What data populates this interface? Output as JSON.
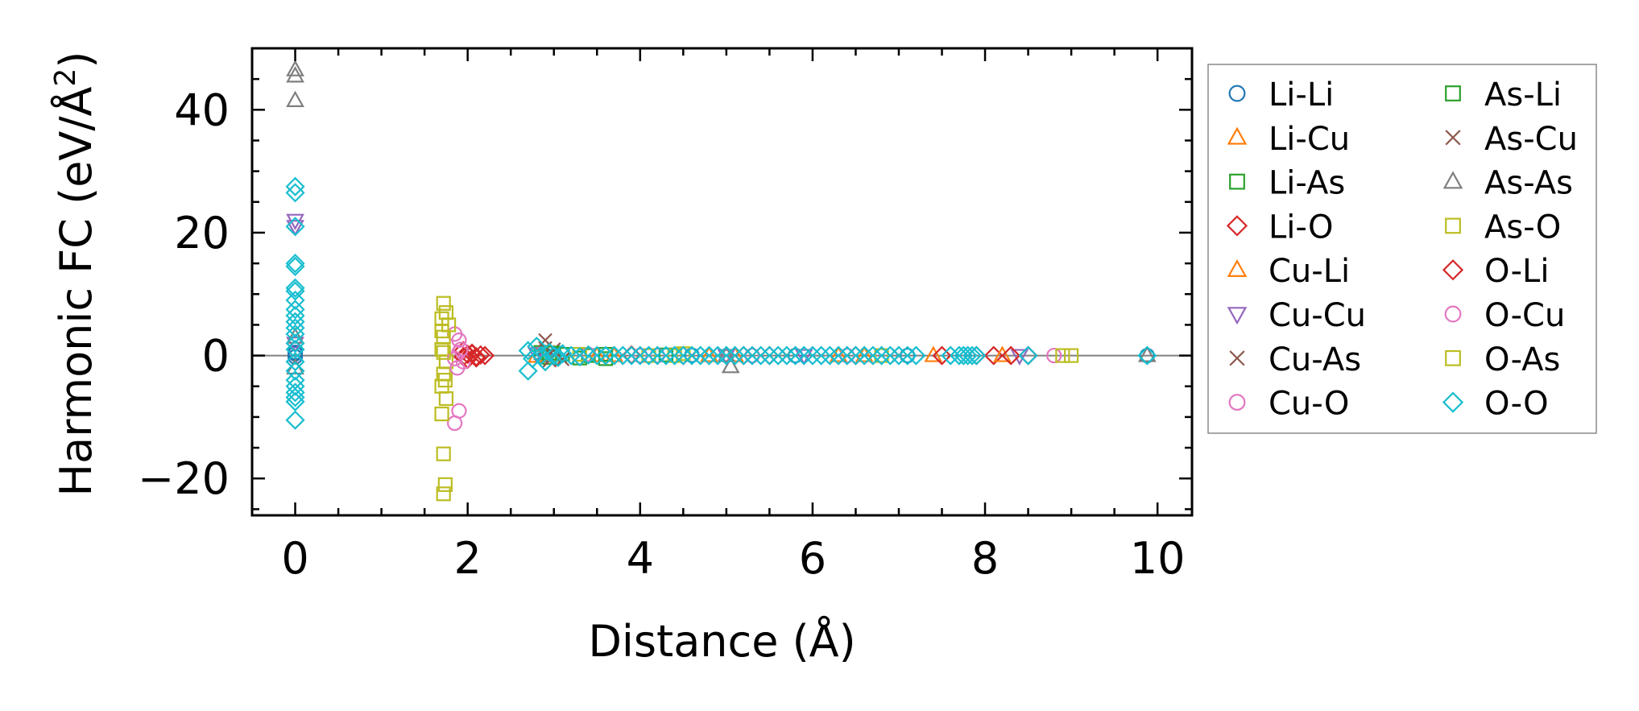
{
  "chart_data": {
    "type": "scatter",
    "title": "",
    "xlabel": "Distance (Å)",
    "ylabel_main": "Harmonic FC (eV/Å",
    "ylabel_sup": "2",
    "ylabel_close": ")",
    "xlim": [
      -0.5,
      10.4
    ],
    "ylim": [
      -26,
      50
    ],
    "xticks": [
      0,
      2,
      4,
      6,
      8,
      10
    ],
    "xtick_labels": [
      "0",
      "2",
      "4",
      "6",
      "8",
      "10"
    ],
    "yticks": [
      -20,
      0,
      20,
      40
    ],
    "ytick_labels": [
      "−20",
      "0",
      "20",
      "40"
    ],
    "grid": false,
    "legend_position": "outside-right",
    "zero_line": true,
    "series": [
      {
        "name": "Li-Li",
        "marker": "circle",
        "color": "#1f77b4",
        "points": [
          [
            0,
            0.5
          ],
          [
            0,
            0.3
          ],
          [
            0,
            -0.2
          ],
          [
            2.9,
            0.1
          ],
          [
            4.6,
            0.05
          ],
          [
            5.8,
            0
          ],
          [
            7.1,
            0
          ],
          [
            9.88,
            0
          ]
        ]
      },
      {
        "name": "Li-Cu",
        "marker": "triangle-up",
        "color": "#ff7f0e",
        "points": [
          [
            2.8,
            -0.1
          ],
          [
            2.9,
            0.2
          ],
          [
            3.5,
            0
          ],
          [
            4.8,
            0
          ],
          [
            6.3,
            0
          ],
          [
            7.4,
            0
          ]
        ]
      },
      {
        "name": "Li-As",
        "marker": "square",
        "color": "#2ca02c",
        "points": [
          [
            2.85,
            0.5
          ],
          [
            2.95,
            -0.3
          ],
          [
            3.1,
            0.2
          ],
          [
            3.4,
            0
          ],
          [
            3.6,
            -0.5
          ],
          [
            4.3,
            0.1
          ]
        ]
      },
      {
        "name": "Li-O",
        "marker": "diamond",
        "color": "#d62728",
        "points": [
          [
            1.95,
            0.8
          ],
          [
            2.0,
            -0.6
          ],
          [
            2.05,
            0.4
          ],
          [
            2.1,
            -0.2
          ],
          [
            2.15,
            0.1
          ],
          [
            2.2,
            0
          ],
          [
            2.0,
            0.2
          ],
          [
            3.9,
            0.1
          ],
          [
            4.5,
            0
          ],
          [
            5.5,
            0
          ],
          [
            6.5,
            0
          ],
          [
            7.5,
            0
          ],
          [
            8.1,
            0
          ],
          [
            8.5,
            0
          ]
        ]
      },
      {
        "name": "Cu-Li",
        "marker": "triangle-up",
        "color": "#ff7f0e",
        "points": [
          [
            3.0,
            0.2
          ],
          [
            3.7,
            0
          ],
          [
            5.1,
            0
          ],
          [
            6.6,
            0
          ],
          [
            8.2,
            0
          ]
        ]
      },
      {
        "name": "Cu-Cu",
        "marker": "triangle-down",
        "color": "#9467bd",
        "points": [
          [
            0,
            22
          ],
          [
            0,
            21
          ],
          [
            0,
            2
          ],
          [
            2.8,
            0.3
          ],
          [
            5.0,
            0
          ],
          [
            5.9,
            0
          ],
          [
            8.4,
            0
          ]
        ]
      },
      {
        "name": "Cu-As",
        "marker": "x",
        "color": "#8c564b",
        "points": [
          [
            2.9,
            2.5
          ],
          [
            2.95,
            -0.8
          ],
          [
            3.0,
            1.0
          ],
          [
            4.6,
            0
          ],
          [
            5.7,
            0
          ],
          [
            7.0,
            0
          ]
        ]
      },
      {
        "name": "Cu-O",
        "marker": "circle",
        "color": "#e377c2",
        "points": [
          [
            1.85,
            3.5
          ],
          [
            1.9,
            2.5
          ],
          [
            1.9,
            -9
          ],
          [
            1.85,
            -11
          ],
          [
            1.9,
            0.5
          ],
          [
            1.95,
            -1
          ],
          [
            3.4,
            0.2
          ],
          [
            4.2,
            0
          ],
          [
            5.3,
            0
          ],
          [
            6.4,
            0
          ],
          [
            8.8,
            0
          ]
        ]
      },
      {
        "name": "As-Li",
        "marker": "square",
        "color": "#2ca02c",
        "points": [
          [
            3.0,
            0.4
          ],
          [
            3.3,
            -0.4
          ],
          [
            3.6,
            0.2
          ]
        ]
      },
      {
        "name": "As-Cu",
        "marker": "x",
        "color": "#8c564b",
        "points": [
          [
            2.9,
            1.2
          ],
          [
            3.1,
            -0.6
          ]
        ]
      },
      {
        "name": "As-As",
        "marker": "triangle-up",
        "color": "#7f7f7f",
        "points": [
          [
            0,
            46.5
          ],
          [
            0,
            45.5
          ],
          [
            0,
            41.5
          ],
          [
            0,
            3
          ],
          [
            0,
            -2
          ],
          [
            5.05,
            -1.8
          ],
          [
            5.0,
            0
          ],
          [
            9.88,
            0
          ]
        ]
      },
      {
        "name": "As-O",
        "marker": "square",
        "color": "#bcbd22",
        "points": [
          [
            1.72,
            8.5
          ],
          [
            1.75,
            7
          ],
          [
            1.7,
            6
          ],
          [
            1.78,
            5
          ],
          [
            1.72,
            3
          ],
          [
            1.7,
            1
          ],
          [
            1.75,
            -1
          ],
          [
            1.72,
            -3
          ],
          [
            1.7,
            -5
          ],
          [
            1.75,
            -7
          ],
          [
            1.7,
            -9.5
          ],
          [
            1.72,
            -16
          ],
          [
            1.74,
            -21
          ],
          [
            1.72,
            -22.5
          ],
          [
            3.3,
            0.2
          ],
          [
            4.1,
            0
          ],
          [
            4.5,
            0.3
          ],
          [
            6.8,
            0
          ],
          [
            8.9,
            0
          ],
          [
            9.0,
            0
          ]
        ]
      },
      {
        "name": "O-Li",
        "marker": "diamond",
        "color": "#d62728",
        "points": [
          [
            1.95,
            -0.2
          ],
          [
            2.05,
            0.3
          ],
          [
            2.1,
            -0.4
          ],
          [
            5.2,
            0
          ],
          [
            7.9,
            0
          ],
          [
            8.3,
            0
          ]
        ]
      },
      {
        "name": "O-Cu",
        "marker": "circle",
        "color": "#e377c2",
        "points": [
          [
            1.85,
            -0.5
          ],
          [
            1.92,
            1.0
          ],
          [
            1.88,
            -2
          ],
          [
            4.0,
            0
          ]
        ]
      },
      {
        "name": "O-As",
        "marker": "square",
        "color": "#bcbd22",
        "points": [
          [
            1.7,
            4
          ],
          [
            1.74,
            -4
          ],
          [
            1.72,
            0.5
          ],
          [
            4.4,
            0
          ]
        ]
      },
      {
        "name": "O-O",
        "marker": "diamond",
        "color": "#17becf",
        "points": [
          [
            0,
            27.5
          ],
          [
            0,
            26.5
          ],
          [
            0,
            21
          ],
          [
            0,
            15
          ],
          [
            0,
            14.5
          ],
          [
            0,
            11
          ],
          [
            0,
            10.5
          ],
          [
            0,
            9
          ],
          [
            0,
            7.5
          ],
          [
            0,
            6.5
          ],
          [
            0,
            5.5
          ],
          [
            0,
            4.5
          ],
          [
            0,
            3.5
          ],
          [
            0,
            2
          ],
          [
            0,
            1
          ],
          [
            0,
            -1
          ],
          [
            0,
            -2.5
          ],
          [
            0,
            -4
          ],
          [
            0,
            -5
          ],
          [
            0,
            -6
          ],
          [
            0,
            -6.8
          ],
          [
            0,
            -7.5
          ],
          [
            0,
            -10.5
          ],
          [
            2.7,
            -2.5
          ],
          [
            2.7,
            0.8
          ],
          [
            2.75,
            -0.5
          ],
          [
            2.8,
            1.5
          ],
          [
            2.85,
            0
          ],
          [
            2.9,
            -1.0
          ],
          [
            2.95,
            0.5
          ],
          [
            3.0,
            0
          ],
          [
            3.05,
            -0.3
          ],
          [
            3.1,
            0.3
          ],
          [
            3.2,
            0
          ],
          [
            3.3,
            -0.2
          ],
          [
            3.4,
            0.1
          ],
          [
            3.5,
            0
          ],
          [
            3.6,
            0
          ],
          [
            3.7,
            0
          ],
          [
            3.8,
            0
          ],
          [
            3.9,
            0
          ],
          [
            4.0,
            0
          ],
          [
            4.1,
            0
          ],
          [
            4.2,
            0
          ],
          [
            4.3,
            0
          ],
          [
            4.4,
            0
          ],
          [
            4.5,
            0
          ],
          [
            4.6,
            0
          ],
          [
            4.7,
            0
          ],
          [
            4.8,
            0
          ],
          [
            4.9,
            0
          ],
          [
            5.0,
            0
          ],
          [
            5.1,
            0
          ],
          [
            5.2,
            0
          ],
          [
            5.3,
            0
          ],
          [
            5.4,
            0
          ],
          [
            5.5,
            0
          ],
          [
            5.6,
            0
          ],
          [
            5.7,
            0
          ],
          [
            5.8,
            0
          ],
          [
            5.9,
            0
          ],
          [
            6.0,
            0
          ],
          [
            6.1,
            0
          ],
          [
            6.2,
            0
          ],
          [
            6.3,
            0
          ],
          [
            6.4,
            0
          ],
          [
            6.5,
            0
          ],
          [
            6.6,
            0
          ],
          [
            6.7,
            0
          ],
          [
            6.8,
            0
          ],
          [
            6.9,
            0
          ],
          [
            7.0,
            0
          ],
          [
            7.1,
            0
          ],
          [
            7.2,
            0
          ],
          [
            7.6,
            0
          ],
          [
            7.7,
            0
          ],
          [
            7.75,
            0
          ],
          [
            7.8,
            0
          ],
          [
            7.85,
            0
          ],
          [
            7.9,
            0
          ],
          [
            8.5,
            0
          ],
          [
            9.88,
            0
          ]
        ]
      }
    ]
  }
}
